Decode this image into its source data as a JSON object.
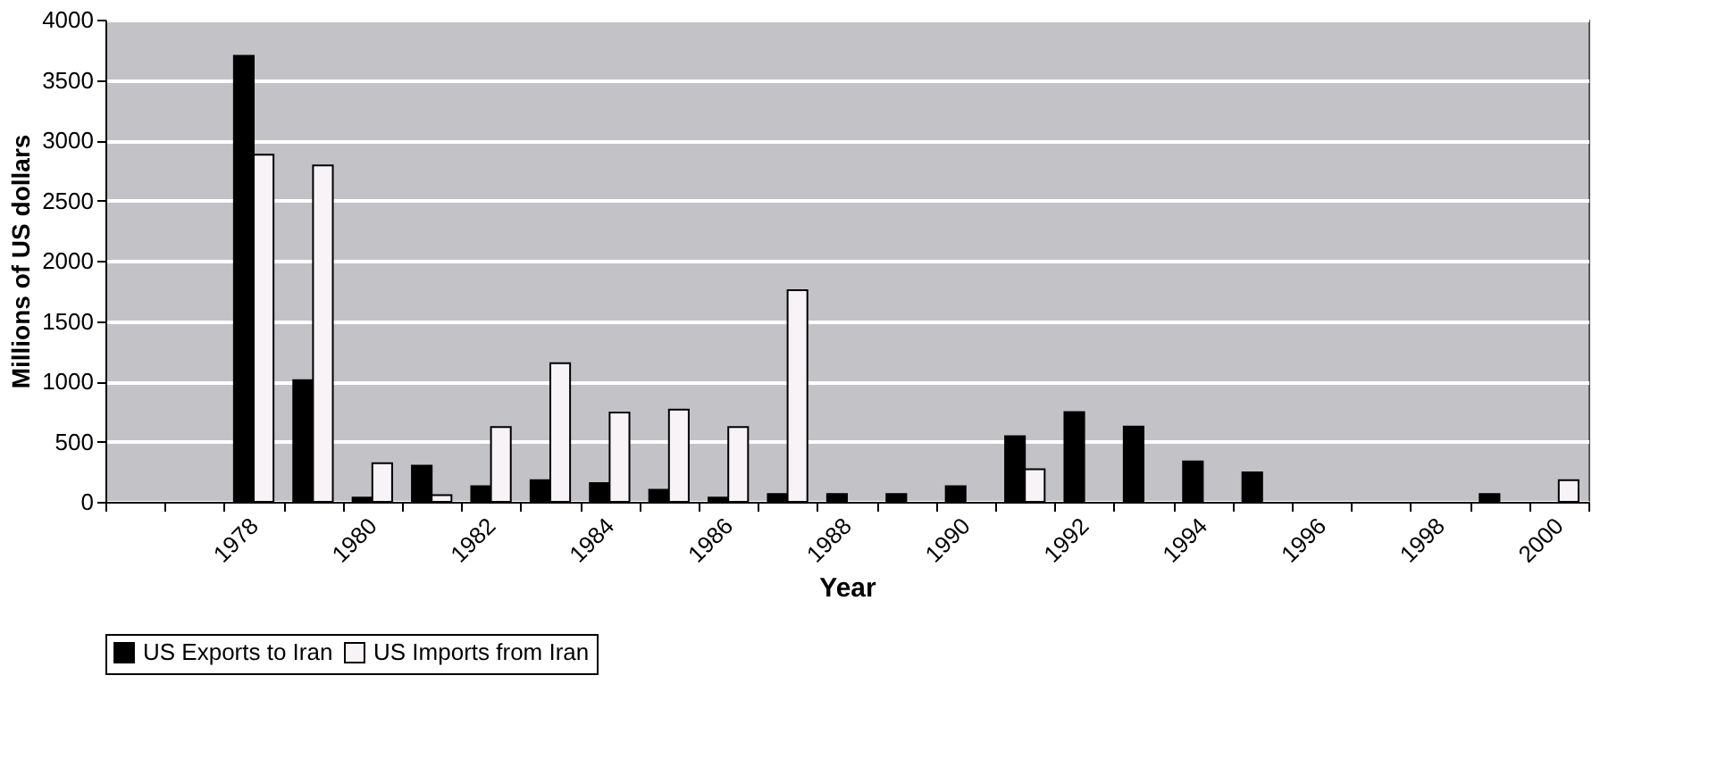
{
  "chart_data": {
    "type": "bar",
    "xlabel": "Year",
    "ylabel": "Millions of US dollars",
    "categories": [
      null,
      null,
      "1978",
      null,
      "1980",
      null,
      "1982",
      null,
      "1984",
      null,
      "1986",
      null,
      "1988",
      null,
      "1990",
      null,
      "1992",
      null,
      "1994",
      null,
      "1996",
      null,
      "1998",
      null,
      "2000"
    ],
    "series": [
      {
        "name": "US Exports to Iran",
        "color": "#000000",
        "values": [
          null,
          null,
          3700,
          1010,
          35,
          300,
          130,
          180,
          155,
          100,
          35,
          65,
          65,
          65,
          130,
          545,
          745,
          625,
          335,
          245,
          null,
          null,
          null,
          65,
          null
        ]
      },
      {
        "name": "US Imports from Iran",
        "color": "#f7f3f7",
        "values": [
          null,
          null,
          2880,
          2790,
          320,
          55,
          620,
          1150,
          740,
          765,
          620,
          1755,
          null,
          null,
          null,
          270,
          null,
          null,
          null,
          null,
          null,
          null,
          null,
          null,
          180
        ]
      }
    ],
    "ylim": [
      0,
      4000
    ],
    "yticks": [
      0,
      500,
      1000,
      1500,
      2000,
      2500,
      3000,
      3500,
      4000
    ],
    "grid": "y",
    "legend": "bottom"
  }
}
